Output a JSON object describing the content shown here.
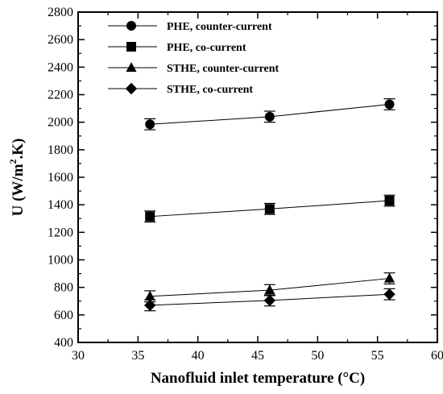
{
  "chart_data": {
    "type": "line",
    "title": "",
    "xlabel": "Nanofluid inlet temperature (°C)",
    "ylabel_main": "U (W/m",
    "ylabel_sup": "2",
    "ylabel_tail": ".K)",
    "xlim": [
      30,
      60
    ],
    "ylim": [
      400,
      2800
    ],
    "xticks": [
      30,
      35,
      40,
      45,
      50,
      55,
      60
    ],
    "yticks": [
      400,
      600,
      800,
      1000,
      1200,
      1400,
      1600,
      1800,
      2000,
      2200,
      2400,
      2600,
      2800
    ],
    "grid": false,
    "legend_position": "top-left",
    "x": [
      36,
      46,
      56
    ],
    "series": [
      {
        "name": "PHE, counter-current",
        "marker": "circle",
        "values": [
          1985,
          2040,
          2130
        ],
        "error": [
          40,
          40,
          40
        ]
      },
      {
        "name": "PHE, co-current",
        "marker": "square",
        "values": [
          1315,
          1370,
          1430
        ],
        "error": [
          40,
          40,
          40
        ]
      },
      {
        "name": "STHE, counter-current",
        "marker": "triangle",
        "values": [
          735,
          780,
          865
        ],
        "error": [
          40,
          40,
          40
        ]
      },
      {
        "name": "STHE, co-current",
        "marker": "diamond",
        "values": [
          670,
          705,
          750
        ],
        "error": [
          40,
          40,
          40
        ]
      }
    ]
  }
}
